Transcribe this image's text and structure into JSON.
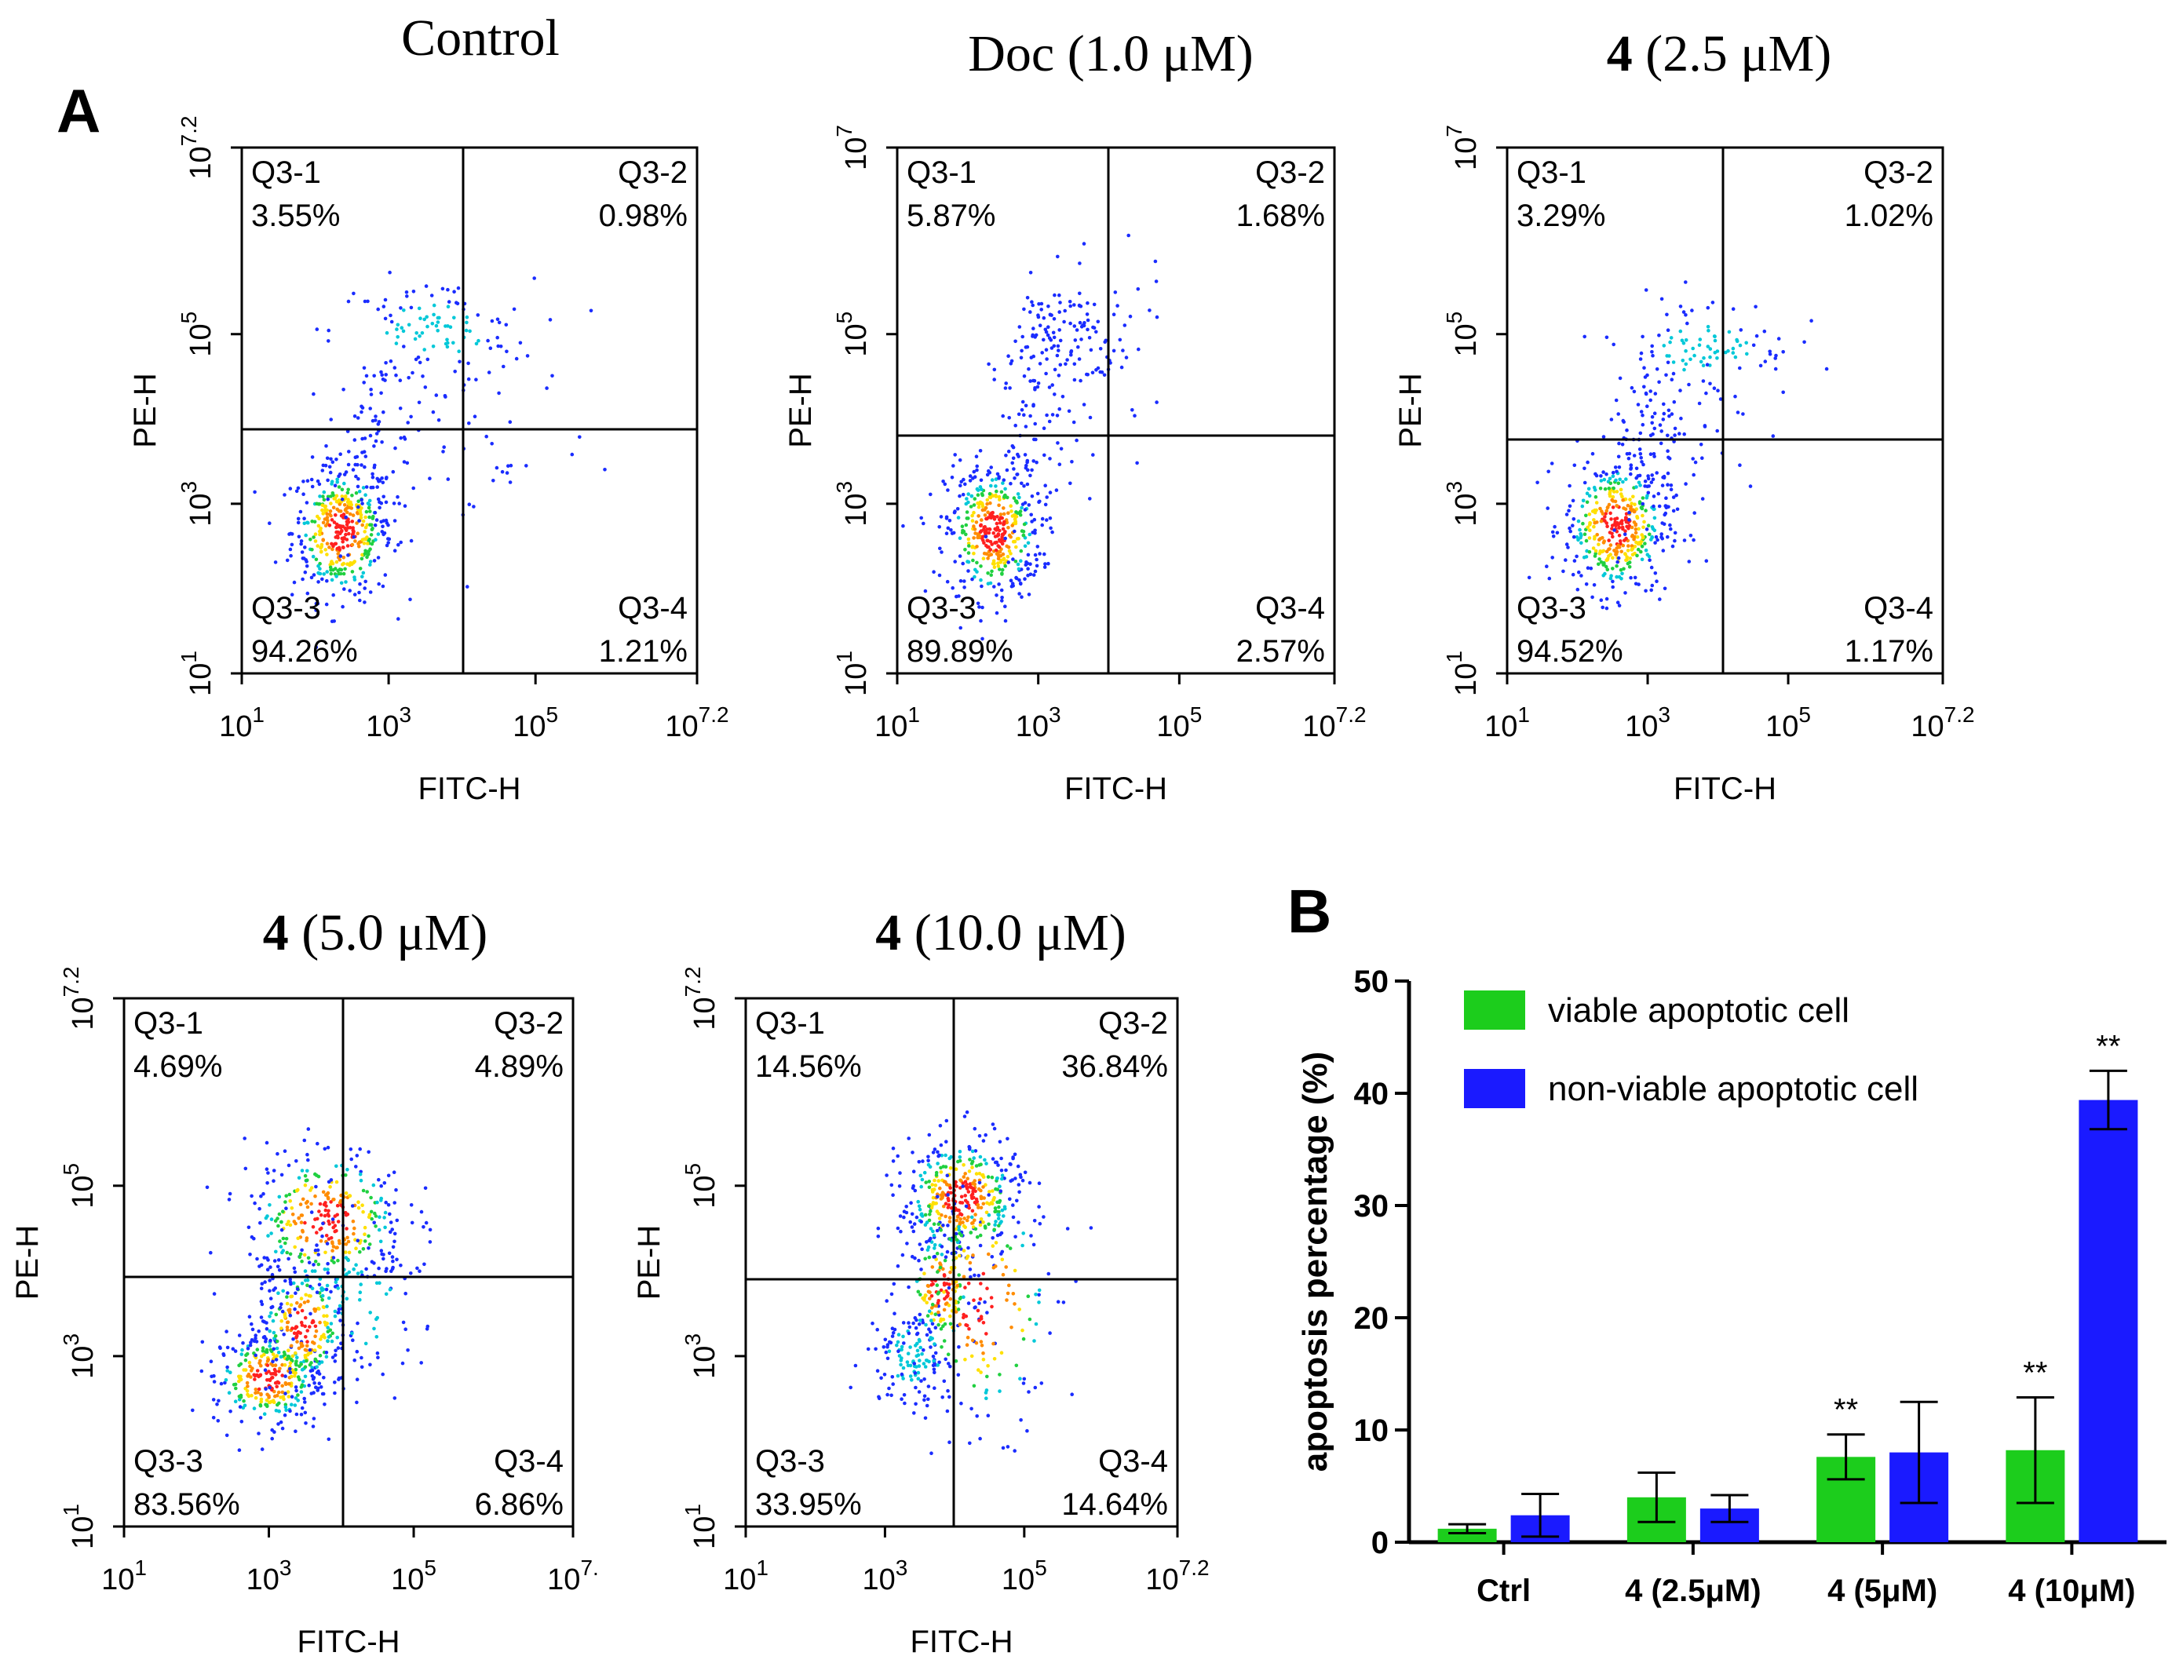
{
  "panel_labels": {
    "a": "A",
    "b": "B"
  },
  "flow_axes": {
    "xlabel": "FITC-H",
    "ylabel": "PE-H",
    "tick_base": "10",
    "x_ticks": [
      {
        "exp": "1",
        "value": 1
      },
      {
        "exp": "3",
        "value": 3
      },
      {
        "exp": "5",
        "value": 5
      },
      {
        "exp": "7.2",
        "value": 7.2
      }
    ],
    "y_ticks": [
      {
        "exp": "1",
        "value": 1
      },
      {
        "exp": "3",
        "value": 3
      },
      {
        "exp": "5",
        "value": 5
      },
      {
        "exp": "7.2",
        "value": 7.2
      }
    ]
  },
  "flow_panels": [
    {
      "title_bold": "",
      "title_text": "Control",
      "quadrants": {
        "q1": {
          "name": "Q3-1",
          "pct": "3.55%"
        },
        "q2": {
          "name": "Q3-2",
          "pct": "0.98%"
        },
        "q3": {
          "name": "Q3-3",
          "pct": "94.26%"
        },
        "q4": {
          "name": "Q3-4",
          "pct": "1.21%"
        }
      }
    },
    {
      "title_bold": "",
      "title_text": "Doc (1.0 μM)",
      "y_top_exp": "7",
      "quadrants": {
        "q1": {
          "name": "Q3-1",
          "pct": "5.87%"
        },
        "q2": {
          "name": "Q3-2",
          "pct": "1.68%"
        },
        "q3": {
          "name": "Q3-3",
          "pct": "89.89%"
        },
        "q4": {
          "name": "Q3-4",
          "pct": "2.57%"
        }
      }
    },
    {
      "title_bold": "4",
      "title_text": " (2.5 μM)",
      "y_top_exp": "7",
      "quadrants": {
        "q1": {
          "name": "Q3-1",
          "pct": "3.29%"
        },
        "q2": {
          "name": "Q3-2",
          "pct": "1.02%"
        },
        "q3": {
          "name": "Q3-3",
          "pct": "94.52%"
        },
        "q4": {
          "name": "Q3-4",
          "pct": "1.17%"
        }
      }
    },
    {
      "title_bold": "4",
      "title_text": " (5.0 μM)",
      "x_right_exp": "7.",
      "quadrants": {
        "q1": {
          "name": "Q3-1",
          "pct": "4.69%"
        },
        "q2": {
          "name": "Q3-2",
          "pct": "4.89%"
        },
        "q3": {
          "name": "Q3-3",
          "pct": "83.56%"
        },
        "q4": {
          "name": "Q3-4",
          "pct": "6.86%"
        }
      }
    },
    {
      "title_bold": "4",
      "title_text": " (10.0 μM)",
      "quadrants": {
        "q1": {
          "name": "Q3-1",
          "pct": "14.56%"
        },
        "q2": {
          "name": "Q3-2",
          "pct": "36.84%"
        },
        "q3": {
          "name": "Q3-3",
          "pct": "33.95%"
        },
        "q4": {
          "name": "Q3-4",
          "pct": "14.64%"
        }
      }
    }
  ],
  "chart_data": [
    {
      "type": "scatter",
      "title": "Control",
      "xlabel": "FITC-H",
      "ylabel": "PE-H",
      "x_scale": "log",
      "y_scale": "log",
      "xlim": [
        "10^1",
        "10^7.2"
      ],
      "ylim": [
        "10^1",
        "10^7.2"
      ],
      "quadrant_percent": {
        "Q3-1": 3.55,
        "Q3-2": 0.98,
        "Q3-3": 94.26,
        "Q3-4": 1.21
      }
    },
    {
      "type": "scatter",
      "title": "Doc (1.0 μM)",
      "xlabel": "FITC-H",
      "ylabel": "PE-H",
      "x_scale": "log",
      "y_scale": "log",
      "xlim": [
        "10^1",
        "10^7.2"
      ],
      "ylim": [
        "10^1",
        "10^7"
      ],
      "quadrant_percent": {
        "Q3-1": 5.87,
        "Q3-2": 1.68,
        "Q3-3": 89.89,
        "Q3-4": 2.57
      }
    },
    {
      "type": "scatter",
      "title": "4 (2.5 μM)",
      "xlabel": "FITC-H",
      "ylabel": "PE-H",
      "x_scale": "log",
      "y_scale": "log",
      "xlim": [
        "10^1",
        "10^7.2"
      ],
      "ylim": [
        "10^1",
        "10^7"
      ],
      "quadrant_percent": {
        "Q3-1": 3.29,
        "Q3-2": 1.02,
        "Q3-3": 94.52,
        "Q3-4": 1.17
      }
    },
    {
      "type": "scatter",
      "title": "4 (5.0 μM)",
      "xlabel": "FITC-H",
      "ylabel": "PE-H",
      "x_scale": "log",
      "y_scale": "log",
      "xlim": [
        "10^1",
        "10^7.2"
      ],
      "ylim": [
        "10^1",
        "10^7.2"
      ],
      "quadrant_percent": {
        "Q3-1": 4.69,
        "Q3-2": 4.89,
        "Q3-3": 83.56,
        "Q3-4": 6.86
      }
    },
    {
      "type": "scatter",
      "title": "4 (10.0 μM)",
      "xlabel": "FITC-H",
      "ylabel": "PE-H",
      "x_scale": "log",
      "y_scale": "log",
      "xlim": [
        "10^1",
        "10^7.2"
      ],
      "ylim": [
        "10^1",
        "10^7.2"
      ],
      "quadrant_percent": {
        "Q3-1": 14.56,
        "Q3-2": 36.84,
        "Q3-3": 33.95,
        "Q3-4": 14.64
      }
    },
    {
      "type": "bar",
      "title": "",
      "xlabel": "",
      "ylabel": "apoptosis percentage (%)",
      "ylim": [
        0,
        50
      ],
      "y_ticks": [
        0,
        10,
        20,
        30,
        40,
        50
      ],
      "categories": [
        "Ctrl",
        "4 (2.5μM)",
        "4 (5μM)",
        "4 (10μM)"
      ],
      "legend_position": "top-left",
      "series": [
        {
          "name": "viable apoptotic cell",
          "color": "#1ccd1c",
          "values": [
            1.2,
            4.0,
            7.6,
            8.2
          ],
          "errors": [
            0.4,
            2.2,
            2.0,
            4.7
          ],
          "significance": [
            "",
            "",
            "**",
            "**"
          ]
        },
        {
          "name": "non-viable apoptotic cell",
          "color": "#1a1aff",
          "values": [
            2.4,
            3.0,
            8.0,
            39.4
          ],
          "errors": [
            1.9,
            1.2,
            4.5,
            2.6
          ],
          "significance": [
            "",
            "",
            "",
            "**"
          ]
        }
      ]
    }
  ]
}
